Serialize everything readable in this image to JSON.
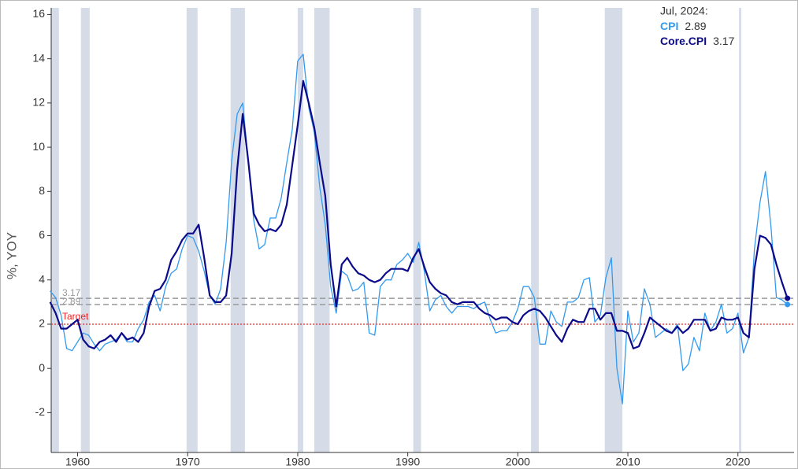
{
  "chart_data": {
    "type": "line",
    "y_label": "%, YOY",
    "xlim": [
      1957.6,
      2025.1
    ],
    "xticks": [
      1960,
      1970,
      1980,
      1990,
      2000,
      2010,
      2020
    ],
    "ylim": [
      -3.8,
      16.3
    ],
    "yticks": [
      -2,
      0,
      2,
      4,
      6,
      8,
      10,
      12,
      14,
      16
    ],
    "recessions": [
      [
        1957.6,
        1958.3
      ],
      [
        1960.3,
        1961.1
      ],
      [
        1969.9,
        1970.9
      ],
      [
        1973.9,
        1975.2
      ],
      [
        1980.0,
        1980.5
      ],
      [
        1981.5,
        1982.9
      ],
      [
        1990.5,
        1991.2
      ],
      [
        2001.2,
        2001.9
      ],
      [
        2007.9,
        2009.5
      ],
      [
        2020.1,
        2020.3
      ]
    ],
    "recession_color": "#d5dce8",
    "reference_lines": [
      {
        "value": 3.17,
        "color": "#999999"
      },
      {
        "value": 2.89,
        "color": "#999999"
      }
    ],
    "target": {
      "value": 2,
      "label": "Target",
      "color": "#ee2222"
    },
    "annotation": {
      "date": "Jul, 2024:",
      "items": [
        {
          "label": "CPI",
          "value": 2.89
        },
        {
          "label": "Core.CPI",
          "value": 3.17
        }
      ]
    },
    "x": [
      1957.5,
      1958,
      1958.5,
      1959,
      1959.5,
      1960,
      1960.5,
      1961,
      1961.5,
      1962,
      1962.5,
      1963,
      1963.5,
      1964,
      1964.5,
      1965,
      1965.5,
      1966,
      1966.5,
      1967,
      1967.5,
      1968,
      1968.5,
      1969,
      1969.5,
      1970,
      1970.5,
      1971,
      1971.5,
      1972,
      1972.5,
      1973,
      1973.5,
      1974,
      1974.5,
      1975,
      1975.5,
      1976,
      1976.5,
      1977,
      1977.5,
      1978,
      1978.5,
      1979,
      1979.5,
      1980,
      1980.5,
      1981,
      1981.5,
      1982,
      1982.5,
      1983,
      1983.5,
      1984,
      1984.5,
      1985,
      1985.5,
      1986,
      1986.5,
      1987,
      1987.5,
      1988,
      1988.5,
      1989,
      1989.5,
      1990,
      1990.5,
      1991,
      1991.5,
      1992,
      1992.5,
      1993,
      1993.5,
      1994,
      1994.5,
      1995,
      1995.5,
      1996,
      1996.5,
      1997,
      1997.5,
      1998,
      1998.5,
      1999,
      1999.5,
      2000,
      2000.5,
      2001,
      2001.5,
      2002,
      2002.5,
      2003,
      2003.5,
      2004,
      2004.5,
      2005,
      2005.5,
      2006,
      2006.5,
      2007,
      2007.5,
      2008,
      2008.5,
      2009,
      2009.5,
      2010,
      2010.5,
      2011,
      2011.5,
      2012,
      2012.5,
      2013,
      2013.5,
      2014,
      2014.5,
      2015,
      2015.5,
      2016,
      2016.5,
      2017,
      2017.5,
      2018,
      2018.5,
      2019,
      2019.5,
      2020,
      2020.5,
      2021,
      2021.5,
      2022,
      2022.5,
      2023,
      2023.5,
      2024,
      2024.5
    ],
    "series": [
      {
        "name": "CPI",
        "color": "#3399ee",
        "width": 1.3,
        "values": [
          3.5,
          3.2,
          2.4,
          0.9,
          0.8,
          1.2,
          1.6,
          1.5,
          1.1,
          0.8,
          1.1,
          1.2,
          1.3,
          1.6,
          1.2,
          1.2,
          1.8,
          2.2,
          3.0,
          3.3,
          2.6,
          3.7,
          4.3,
          4.5,
          5.4,
          6.0,
          5.9,
          5.3,
          4.4,
          3.3,
          2.9,
          3.6,
          5.7,
          9.4,
          11.5,
          12.0,
          9.4,
          6.7,
          5.4,
          5.6,
          6.8,
          6.8,
          7.7,
          9.3,
          10.8,
          13.9,
          14.2,
          11.8,
          10.7,
          8.2,
          6.5,
          3.7,
          2.5,
          4.4,
          4.2,
          3.5,
          3.6,
          3.9,
          1.6,
          1.5,
          3.7,
          4.0,
          4.0,
          4.7,
          4.9,
          5.2,
          4.8,
          5.7,
          4.4,
          2.6,
          3.1,
          3.3,
          2.8,
          2.5,
          2.8,
          2.8,
          2.8,
          2.7,
          2.9,
          3.0,
          2.2,
          1.6,
          1.7,
          1.7,
          2.1,
          2.7,
          3.7,
          3.7,
          3.2,
          1.1,
          1.1,
          2.6,
          2.1,
          1.9,
          3.0,
          3.0,
          3.2,
          4.0,
          4.1,
          2.1,
          2.4,
          4.1,
          5.0,
          0.0,
          -1.6,
          2.6,
          1.2,
          1.6,
          3.6,
          2.9,
          1.4,
          1.6,
          1.8,
          1.6,
          2.0,
          -0.1,
          0.2,
          1.4,
          0.8,
          2.5,
          1.7,
          2.1,
          2.9,
          1.6,
          1.8,
          2.5,
          0.7,
          1.4,
          5.4,
          7.5,
          8.9,
          6.4,
          3.2,
          3.1,
          2.89
        ]
      },
      {
        "name": "Core.CPI",
        "color": "#0a0a8a",
        "width": 2.2,
        "values": [
          3.0,
          2.5,
          1.8,
          1.8,
          2.0,
          2.2,
          1.3,
          1.0,
          0.9,
          1.2,
          1.3,
          1.5,
          1.2,
          1.6,
          1.3,
          1.4,
          1.2,
          1.6,
          2.8,
          3.5,
          3.6,
          4.0,
          4.9,
          5.3,
          5.8,
          6.1,
          6.1,
          6.5,
          5.0,
          3.3,
          3.0,
          3.0,
          3.3,
          5.2,
          9.0,
          11.5,
          9.4,
          7.0,
          6.5,
          6.2,
          6.3,
          6.2,
          6.5,
          7.4,
          9.2,
          11.0,
          13.0,
          12.0,
          10.9,
          9.3,
          7.8,
          4.7,
          2.8,
          4.7,
          5.0,
          4.6,
          4.3,
          4.2,
          4.0,
          3.9,
          4.0,
          4.3,
          4.5,
          4.5,
          4.5,
          4.4,
          5.0,
          5.4,
          4.6,
          3.9,
          3.6,
          3.4,
          3.3,
          3.0,
          2.9,
          3.0,
          3.0,
          3.0,
          2.7,
          2.5,
          2.4,
          2.2,
          2.3,
          2.3,
          2.1,
          2.0,
          2.4,
          2.6,
          2.7,
          2.6,
          2.3,
          1.9,
          1.5,
          1.2,
          1.8,
          2.2,
          2.1,
          2.1,
          2.7,
          2.7,
          2.2,
          2.5,
          2.5,
          1.7,
          1.7,
          1.6,
          0.9,
          1.0,
          1.6,
          2.3,
          2.1,
          1.9,
          1.7,
          1.6,
          1.9,
          1.6,
          1.8,
          2.2,
          2.2,
          2.2,
          1.7,
          1.8,
          2.3,
          2.2,
          2.2,
          2.3,
          1.6,
          1.4,
          4.5,
          6.0,
          5.9,
          5.6,
          4.7,
          3.9,
          3.17
        ]
      }
    ]
  }
}
